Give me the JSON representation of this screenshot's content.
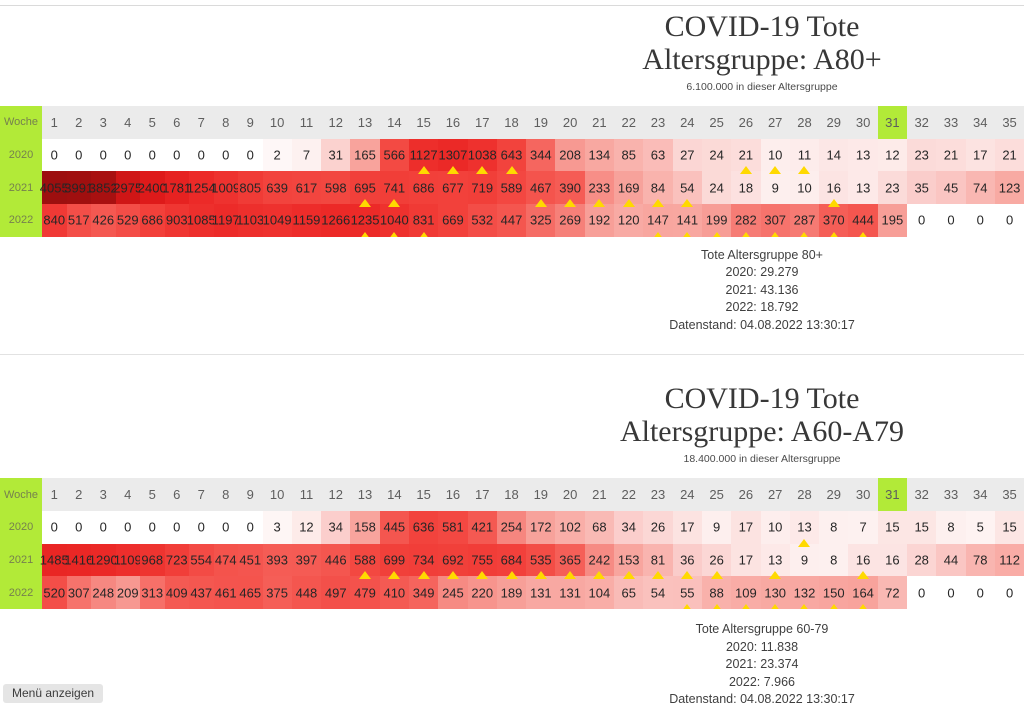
{
  "page": {
    "menu_button_label": "Menü anzeigen"
  },
  "colors": {
    "accent_green": "#b2ea38",
    "header_gray": "#ebebeb",
    "marker_yellow": "#ffd900",
    "scale_max": 4055,
    "scale_stops": [
      [
        0.0,
        255,
        255,
        255
      ],
      [
        0.05,
        253,
        238,
        237
      ],
      [
        0.1,
        250,
        200,
        197
      ],
      [
        0.15,
        249,
        176,
        170
      ],
      [
        0.22,
        247,
        158,
        151
      ],
      [
        0.3,
        245,
        95,
        88
      ],
      [
        0.4,
        242,
        66,
        60
      ],
      [
        0.55,
        236,
        42,
        40
      ],
      [
        0.75,
        225,
        27,
        27
      ],
      [
        0.9,
        200,
        20,
        20
      ],
      [
        1.0,
        157,
        15,
        15
      ]
    ]
  },
  "chart_data": [
    {
      "type": "heatmap",
      "title_line1": "COVID-19 Tote",
      "title_line2": "Altersgruppe: A80+",
      "subtitle": "6.100.000 in dieser Altersgruppe",
      "week_label": "Woche",
      "weeks": [
        1,
        2,
        3,
        4,
        5,
        6,
        7,
        8,
        9,
        10,
        11,
        12,
        13,
        14,
        15,
        16,
        17,
        18,
        19,
        20,
        21,
        22,
        23,
        24,
        25,
        26,
        27,
        28,
        29,
        30,
        31,
        32,
        33,
        34,
        35
      ],
      "highlight_week": 31,
      "rows": [
        {
          "year": "2020",
          "values": [
            0,
            0,
            0,
            0,
            0,
            0,
            0,
            0,
            0,
            2,
            7,
            31,
            165,
            566,
            1127,
            1307,
            1038,
            643,
            344,
            208,
            134,
            85,
            63,
            27,
            24,
            21,
            10,
            11,
            14,
            13,
            12,
            23,
            21,
            17,
            21
          ],
          "markers": [
            15,
            16,
            17,
            18,
            26,
            27,
            28
          ]
        },
        {
          "year": "2021",
          "values": [
            4055,
            3991,
            3852,
            2975,
            2400,
            1781,
            1254,
            1009,
            805,
            639,
            617,
            598,
            695,
            741,
            686,
            677,
            719,
            589,
            467,
            390,
            233,
            169,
            84,
            54,
            24,
            18,
            9,
            10,
            16,
            13,
            23,
            35,
            45,
            74,
            123
          ],
          "markers": [
            13,
            14,
            19,
            20,
            21,
            22,
            23,
            24,
            29
          ]
        },
        {
          "year": "2022",
          "values": [
            840,
            517,
            426,
            529,
            686,
            903,
            1085,
            1197,
            1103,
            1049,
            1159,
            1266,
            1235,
            1040,
            831,
            669,
            532,
            447,
            325,
            269,
            192,
            120,
            147,
            141,
            199,
            282,
            307,
            287,
            370,
            444,
            195,
            0,
            0,
            0,
            0
          ],
          "markers": [
            13,
            14,
            15,
            23,
            24,
            25,
            26,
            27,
            28,
            29,
            30
          ]
        }
      ],
      "summary": {
        "heading": "Tote Altersgruppe 80+",
        "line_2020": "2020: 29.279",
        "line_2021": "2021: 43.136",
        "line_2022": "2022: 18.792",
        "datenstand": "Datenstand: 04.08.2022 13:30:17"
      }
    },
    {
      "type": "heatmap",
      "title_line1": "COVID-19 Tote",
      "title_line2": "Altersgruppe: A60-A79",
      "subtitle": "18.400.000 in dieser Altersgruppe",
      "week_label": "Woche",
      "weeks": [
        1,
        2,
        3,
        4,
        5,
        6,
        7,
        8,
        9,
        10,
        11,
        12,
        13,
        14,
        15,
        16,
        17,
        18,
        19,
        20,
        21,
        22,
        23,
        24,
        25,
        26,
        27,
        28,
        29,
        30,
        31,
        32,
        33,
        34,
        35
      ],
      "highlight_week": 31,
      "rows": [
        {
          "year": "2020",
          "values": [
            0,
            0,
            0,
            0,
            0,
            0,
            0,
            0,
            0,
            3,
            12,
            34,
            158,
            445,
            636,
            581,
            421,
            254,
            172,
            102,
            68,
            34,
            26,
            17,
            9,
            17,
            10,
            13,
            8,
            7,
            15,
            15,
            8,
            5,
            15
          ],
          "markers": [
            28
          ]
        },
        {
          "year": "2021",
          "values": [
            1485,
            1416,
            1290,
            1109,
            968,
            723,
            554,
            474,
            451,
            393,
            397,
            446,
            588,
            699,
            734,
            692,
            755,
            684,
            535,
            365,
            242,
            153,
            81,
            36,
            26,
            17,
            13,
            9,
            8,
            16,
            16,
            28,
            44,
            78,
            112
          ],
          "markers": [
            13,
            14,
            15,
            16,
            17,
            18,
            19,
            20,
            21,
            22,
            23,
            24,
            25,
            27,
            30
          ]
        },
        {
          "year": "2022",
          "values": [
            520,
            307,
            248,
            209,
            313,
            409,
            437,
            461,
            465,
            375,
            448,
            497,
            479,
            410,
            349,
            245,
            220,
            189,
            131,
            131,
            104,
            65,
            54,
            55,
            88,
            109,
            130,
            132,
            150,
            164,
            72,
            0,
            0,
            0,
            0
          ],
          "markers": [
            24,
            25,
            26,
            27,
            28,
            29,
            30
          ]
        }
      ],
      "summary": {
        "heading": "Tote Altersgruppe 60-79",
        "line_2020": "2020: 11.838",
        "line_2021": "2021: 23.374",
        "line_2022": "2022: 7.966",
        "datenstand": "Datenstand: 04.08.2022 13:30:17"
      }
    }
  ]
}
